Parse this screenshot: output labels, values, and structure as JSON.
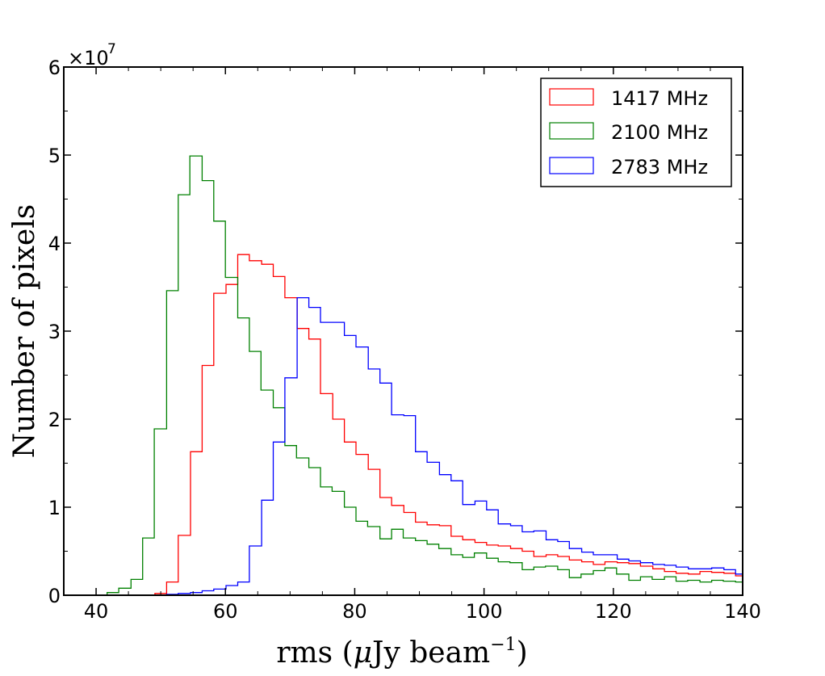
{
  "chart_data": {
    "type": "histogram",
    "xlabel": "rms (μJy beam⁻¹)",
    "xlabel_main": "rms (",
    "xlabel_mu": "μ",
    "xlabel_unit": "Jy beam",
    "xlabel_exp": "−1",
    "xlabel_close": ")",
    "ylabel": "Number of pixels",
    "y_multiplier_base": "×10",
    "y_multiplier_exp": "7",
    "xlim": [
      35,
      140
    ],
    "ylim": [
      0,
      6
    ],
    "x_ticks": [
      40,
      60,
      80,
      100,
      120,
      140
    ],
    "y_ticks": [
      0,
      1,
      2,
      3,
      4,
      5,
      6
    ],
    "x_tick_labels": [
      "40",
      "60",
      "80",
      "100",
      "120",
      "140"
    ],
    "y_tick_labels": [
      "0",
      "1",
      "2",
      "3",
      "4",
      "5",
      "6"
    ],
    "legend_position": "top-right",
    "bin_width": 1.83,
    "series": [
      {
        "name": "1417 MHz",
        "color": "#ff0000",
        "edges": [
          35,
          49.1,
          50.9,
          52.7,
          54.6,
          56.4,
          58.2,
          60.1,
          61.9,
          63.7,
          65.6,
          67.4,
          69.2,
          71.1,
          72.9,
          74.7,
          76.6,
          78.4,
          80.2,
          82.1,
          83.9,
          85.7,
          87.6,
          89.4,
          91.2,
          93.1,
          94.9,
          96.7,
          98.6,
          100.4,
          102.2,
          104.1,
          105.9,
          107.7,
          109.6,
          111.4,
          113.2,
          115.1,
          116.9,
          118.7,
          120.6,
          122.4,
          124.2,
          126.1,
          127.9,
          129.7,
          131.6,
          133.4,
          135.2,
          137.1,
          138.9,
          140
        ],
        "values": [
          0,
          0.02,
          0.15,
          0.68,
          1.63,
          2.61,
          3.43,
          3.53,
          3.87,
          3.8,
          3.76,
          3.62,
          3.38,
          3.03,
          2.91,
          2.29,
          2.0,
          1.74,
          1.6,
          1.43,
          1.11,
          1.02,
          0.94,
          0.83,
          0.8,
          0.79,
          0.67,
          0.63,
          0.6,
          0.57,
          0.56,
          0.53,
          0.5,
          0.44,
          0.46,
          0.44,
          0.4,
          0.38,
          0.35,
          0.38,
          0.37,
          0.36,
          0.33,
          0.3,
          0.27,
          0.25,
          0.24,
          0.27,
          0.26,
          0.25,
          0.22
        ]
      },
      {
        "name": "2100 MHz",
        "color": "#008000",
        "edges": [
          35,
          41.7,
          43.5,
          45.4,
          47.2,
          49.0,
          50.9,
          52.7,
          54.5,
          56.4,
          58.2,
          60.0,
          61.9,
          63.7,
          65.5,
          67.4,
          69.2,
          71.0,
          72.9,
          74.7,
          76.5,
          78.4,
          80.2,
          82.0,
          83.9,
          85.7,
          87.5,
          89.4,
          91.2,
          93.0,
          94.9,
          96.7,
          98.5,
          100.4,
          102.2,
          104.0,
          105.9,
          107.7,
          109.5,
          111.4,
          113.2,
          115.0,
          116.9,
          118.7,
          120.5,
          122.4,
          124.2,
          126.0,
          127.9,
          129.7,
          131.5,
          133.4,
          135.2,
          137.0,
          138.9,
          140
        ],
        "values": [
          0,
          0.03,
          0.08,
          0.18,
          0.65,
          1.89,
          3.46,
          4.55,
          4.99,
          4.71,
          4.25,
          3.61,
          3.15,
          2.77,
          2.33,
          2.13,
          1.7,
          1.56,
          1.45,
          1.23,
          1.18,
          1.0,
          0.84,
          0.78,
          0.64,
          0.75,
          0.65,
          0.62,
          0.58,
          0.53,
          0.46,
          0.43,
          0.48,
          0.42,
          0.38,
          0.37,
          0.29,
          0.32,
          0.33,
          0.29,
          0.2,
          0.24,
          0.28,
          0.31,
          0.24,
          0.17,
          0.21,
          0.18,
          0.21,
          0.16,
          0.17,
          0.15,
          0.17,
          0.16,
          0.15
        ]
      },
      {
        "name": "2783 MHz",
        "color": "#0000ff",
        "edges": [
          35,
          50.9,
          52.7,
          54.6,
          56.4,
          58.2,
          60.1,
          61.9,
          63.7,
          65.6,
          67.4,
          69.2,
          71.1,
          72.9,
          74.7,
          76.6,
          78.4,
          80.2,
          82.1,
          83.9,
          85.7,
          87.6,
          89.4,
          91.2,
          93.1,
          94.9,
          96.7,
          98.6,
          100.4,
          102.2,
          104.1,
          105.9,
          107.7,
          109.6,
          111.4,
          113.2,
          115.1,
          116.9,
          118.7,
          120.6,
          122.4,
          124.2,
          126.1,
          127.9,
          129.7,
          131.6,
          133.4,
          135.2,
          137.1,
          138.9,
          140
        ],
        "values": [
          0,
          0.01,
          0.02,
          0.03,
          0.05,
          0.07,
          0.11,
          0.15,
          0.56,
          1.08,
          1.74,
          2.47,
          3.38,
          3.27,
          3.1,
          3.1,
          2.95,
          2.82,
          2.57,
          2.41,
          2.05,
          2.04,
          1.63,
          1.51,
          1.37,
          1.3,
          1.03,
          1.07,
          0.97,
          0.81,
          0.79,
          0.72,
          0.73,
          0.63,
          0.61,
          0.53,
          0.49,
          0.46,
          0.46,
          0.41,
          0.39,
          0.37,
          0.35,
          0.34,
          0.32,
          0.3,
          0.3,
          0.31,
          0.29,
          0.24
        ]
      }
    ]
  }
}
